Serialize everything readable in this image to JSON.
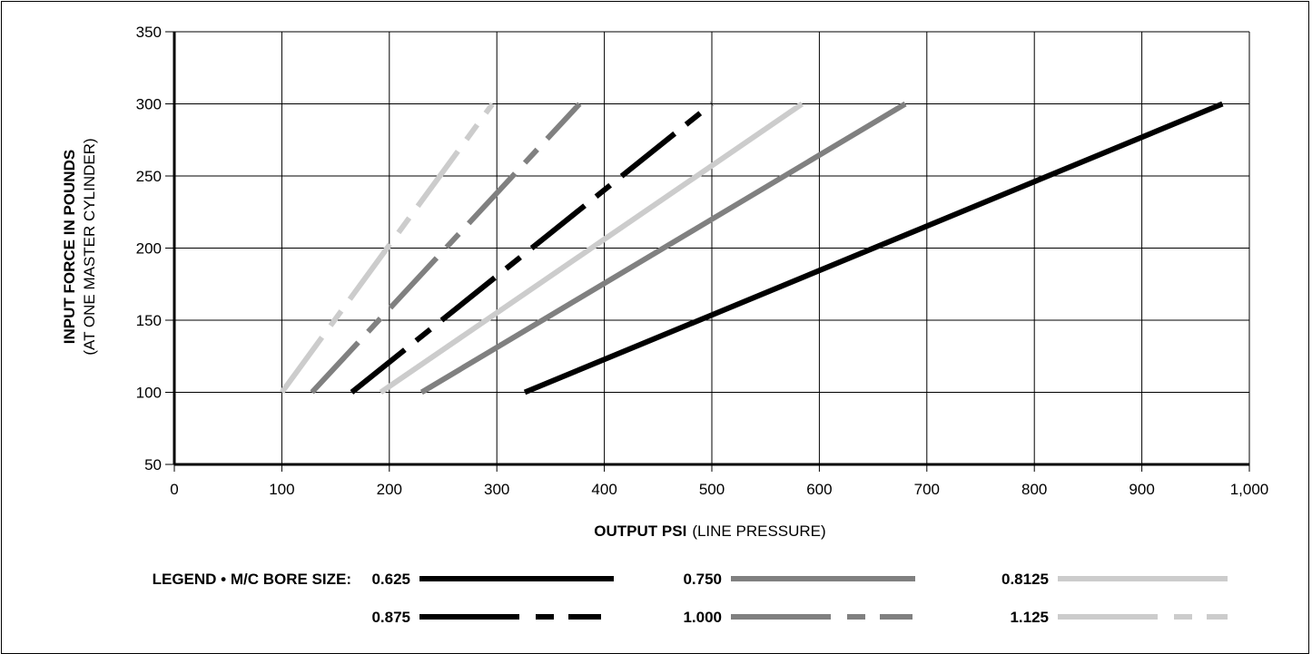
{
  "chart_data": {
    "type": "line",
    "title": "",
    "xlabel": {
      "bold": "OUTPUT PSI",
      "normal": "(LINE PRESSURE)"
    },
    "ylabel": {
      "line1": "INPUT FORCE IN POUNDS",
      "line2": "(AT ONE MASTER CYLINDER)"
    },
    "xlim": [
      0,
      1000
    ],
    "ylim": [
      50,
      350
    ],
    "x_ticks": [
      0,
      100,
      200,
      300,
      400,
      500,
      600,
      700,
      800,
      900,
      1000
    ],
    "x_tick_labels": [
      "0",
      "100",
      "200",
      "300",
      "400",
      "500",
      "600",
      "700",
      "800",
      "900",
      "1,000"
    ],
    "y_ticks": [
      50,
      100,
      150,
      200,
      250,
      300,
      350
    ],
    "y_tick_labels": [
      "50",
      "100",
      "150",
      "200",
      "250",
      "300",
      "350"
    ],
    "grid": true,
    "legend_position": "bottom",
    "legend_title": "LEGEND • M/C BORE SIZE:",
    "series": [
      {
        "name": "0.625",
        "color": "#000000",
        "style": "solid",
        "x": [
          326,
          975
        ],
        "y": [
          100,
          300
        ]
      },
      {
        "name": "0.750",
        "color": "#808080",
        "style": "solid",
        "x": [
          230,
          680
        ],
        "y": [
          100,
          300
        ]
      },
      {
        "name": "0.8125",
        "color": "#cccccc",
        "style": "solid",
        "x": [
          192,
          584
        ],
        "y": [
          100,
          300
        ]
      },
      {
        "name": "0.875",
        "color": "#000000",
        "style": "dash-dot",
        "x": [
          165,
          500
        ],
        "y": [
          100,
          300
        ]
      },
      {
        "name": "1.000",
        "color": "#808080",
        "style": "dash-dot",
        "x": [
          128,
          377
        ],
        "y": [
          100,
          300
        ]
      },
      {
        "name": "1.125",
        "color": "#cccccc",
        "style": "dash-dot",
        "x": [
          100,
          296
        ],
        "y": [
          100,
          300
        ]
      }
    ]
  }
}
